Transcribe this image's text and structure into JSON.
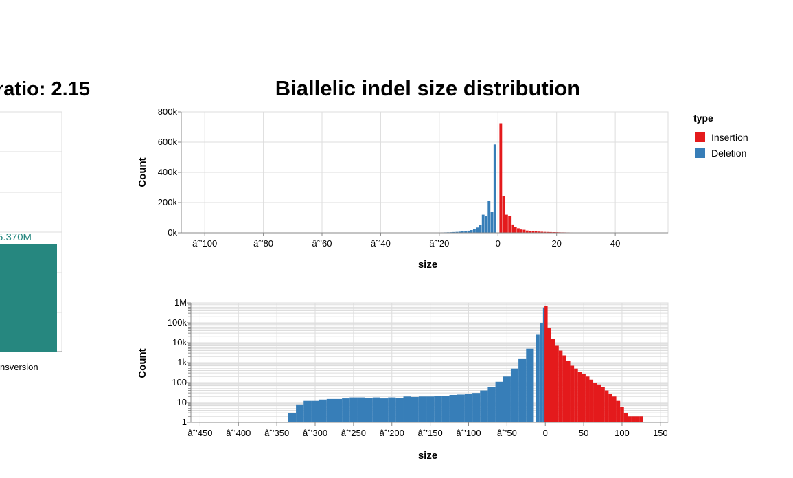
{
  "left_chart": {
    "title_fragment": "ratio: 2.15",
    "bar_label": "5.370M",
    "x_tick_fragment": "nsversion",
    "bar_color": "#26877f",
    "label_color": "#26877f"
  },
  "main_title": "Biallelic indel size distribution",
  "legend": {
    "title": "type",
    "items": [
      {
        "label": "Insertion",
        "color": "#e41a1c"
      },
      {
        "label": "Deletion",
        "color": "#377eb8"
      }
    ]
  },
  "chart_data": [
    {
      "type": "bar",
      "title": "Biallelic indel size distribution",
      "xlabel": "size",
      "ylabel": "Count",
      "xlim": [
        -108,
        58
      ],
      "ylim": [
        0,
        800000
      ],
      "x_ticks": [
        -100,
        -80,
        -60,
        -40,
        -20,
        0,
        20,
        40
      ],
      "x_tick_labels": [
        "âˆ’100",
        "âˆ’80",
        "âˆ’60",
        "âˆ’40",
        "âˆ’20",
        "0",
        "20",
        "40"
      ],
      "y_ticks": [
        0,
        200000,
        400000,
        600000,
        800000
      ],
      "y_tick_labels": [
        "0k",
        "200k",
        "400k",
        "600k",
        "800k"
      ],
      "grid": true,
      "series": [
        {
          "name": "Deletion",
          "color": "#377eb8",
          "x": [
            -25,
            -24,
            -23,
            -22,
            -21,
            -20,
            -19,
            -18,
            -17,
            -16,
            -15,
            -14,
            -13,
            -12,
            -11,
            -10,
            -9,
            -8,
            -7,
            -6,
            -5,
            -4,
            -3,
            -2,
            -1
          ],
          "values": [
            1000,
            1200,
            1400,
            1500,
            1700,
            2000,
            2400,
            2800,
            3400,
            4000,
            5000,
            6000,
            7500,
            9000,
            11000,
            14000,
            18000,
            24000,
            35000,
            50000,
            120000,
            110000,
            210000,
            140000,
            585000
          ]
        },
        {
          "name": "Insertion",
          "color": "#e41a1c",
          "x": [
            1,
            2,
            3,
            4,
            5,
            6,
            7,
            8,
            9,
            10,
            11,
            12,
            13,
            14,
            15,
            16,
            17,
            18,
            19,
            20,
            21,
            22,
            23,
            24,
            25,
            26,
            27,
            28,
            29,
            30,
            31,
            32,
            33,
            34,
            35
          ],
          "values": [
            725000,
            245000,
            120000,
            110000,
            55000,
            40000,
            30000,
            22000,
            20000,
            15000,
            12000,
            10000,
            9000,
            8000,
            7000,
            6000,
            5500,
            5000,
            4500,
            4000,
            3500,
            3000,
            2800,
            2500,
            2300,
            2000,
            1800,
            1600,
            1500,
            1300,
            1200,
            1100,
            1000,
            900,
            800
          ]
        }
      ]
    },
    {
      "type": "bar",
      "xlabel": "size",
      "ylabel": "Count",
      "y_scale": "log",
      "xlim": [
        -462,
        160
      ],
      "ylim": [
        1,
        1000000
      ],
      "x_ticks": [
        -450,
        -400,
        -350,
        -300,
        -250,
        -200,
        -150,
        -100,
        -50,
        0,
        50,
        100,
        150
      ],
      "x_tick_labels": [
        "âˆ’450",
        "âˆ’400",
        "âˆ’350",
        "âˆ’300",
        "âˆ’250",
        "âˆ’200",
        "âˆ’150",
        "âˆ’100",
        "âˆ’50",
        "0",
        "50",
        "100",
        "150"
      ],
      "y_ticks": [
        1,
        10,
        100,
        1000,
        10000,
        100000,
        1000000
      ],
      "y_tick_labels": [
        "1",
        "10",
        "100",
        "1k",
        "10k",
        "100k",
        "1M"
      ],
      "grid": true,
      "series": [
        {
          "name": "Deletion",
          "color": "#377eb8",
          "x": [
            -330,
            -320,
            -310,
            -300,
            -290,
            -280,
            -270,
            -260,
            -250,
            -240,
            -230,
            -220,
            -210,
            -200,
            -190,
            -180,
            -170,
            -160,
            -150,
            -140,
            -130,
            -120,
            -110,
            -100,
            -90,
            -80,
            -70,
            -60,
            -50,
            -40,
            -30,
            -20,
            -10,
            -5,
            -1
          ],
          "values": [
            3,
            8,
            12,
            12,
            14,
            15,
            15,
            16,
            18,
            18,
            17,
            18,
            16,
            18,
            17,
            20,
            19,
            20,
            20,
            22,
            22,
            24,
            25,
            26,
            30,
            40,
            60,
            110,
            200,
            500,
            1500,
            5000,
            25000,
            100000,
            585000
          ]
        },
        {
          "name": "Insertion",
          "color": "#e41a1c",
          "x": [
            1,
            5,
            10,
            15,
            20,
            25,
            30,
            35,
            40,
            45,
            50,
            55,
            60,
            65,
            70,
            75,
            80,
            85,
            90,
            95,
            100,
            105,
            110,
            115,
            120,
            125
          ],
          "values": [
            725000,
            55000,
            15000,
            7000,
            4000,
            2300,
            1200,
            700,
            500,
            350,
            260,
            200,
            140,
            100,
            80,
            60,
            40,
            28,
            20,
            12,
            6,
            3,
            2,
            2,
            2,
            2
          ]
        }
      ]
    }
  ]
}
